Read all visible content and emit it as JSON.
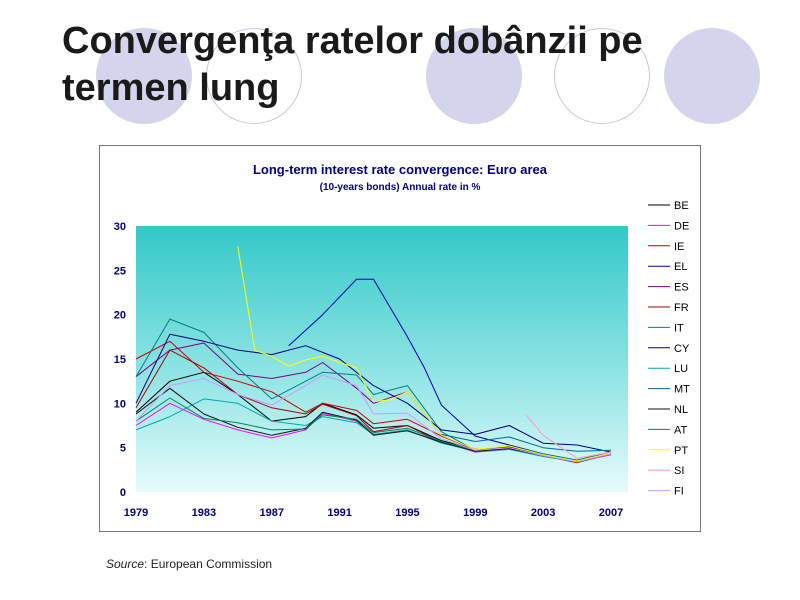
{
  "slide": {
    "title_line1": "Convergenţa ratelor dobânzii pe",
    "title_line2": "termen lung",
    "source_label": "Source",
    "source_text": ": European Commission"
  },
  "chart_data": {
    "type": "line",
    "title": "Long-term interest rate convergence: Euro area",
    "subtitle": "(10-years bonds) Annual rate in %",
    "xlabel": "",
    "ylabel": "",
    "x_ticks": [
      "1979",
      "1983",
      "1987",
      "1991",
      "1995",
      "1999",
      "2003",
      "2007"
    ],
    "ylim": [
      0,
      30
    ],
    "xlim": [
      1979,
      2008
    ],
    "y_ticks": [
      0,
      5,
      10,
      15,
      20,
      25,
      30
    ],
    "background": "gradient teal to pale cyan",
    "legend_position": "right",
    "series": [
      {
        "name": "BE",
        "color": "#000000",
        "points": [
          [
            1979,
            9
          ],
          [
            1981,
            12.5
          ],
          [
            1983,
            13.5
          ],
          [
            1985,
            11
          ],
          [
            1987,
            8
          ],
          [
            1989,
            8.5
          ],
          [
            1990,
            10
          ],
          [
            1992,
            8.7
          ],
          [
            1993,
            7.2
          ],
          [
            1995,
            7.5
          ],
          [
            1997,
            5.8
          ],
          [
            1999,
            4.8
          ],
          [
            2001,
            5.1
          ],
          [
            2003,
            4.2
          ],
          [
            2005,
            3.4
          ],
          [
            2007,
            4.3
          ]
        ]
      },
      {
        "name": "DE",
        "color": "#ff00ff",
        "points": [
          [
            1979,
            7.5
          ],
          [
            1981,
            10
          ],
          [
            1983,
            8.2
          ],
          [
            1985,
            7
          ],
          [
            1987,
            6.1
          ],
          [
            1989,
            7
          ],
          [
            1990,
            8.9
          ],
          [
            1992,
            8
          ],
          [
            1993,
            6.5
          ],
          [
            1995,
            6.9
          ],
          [
            1997,
            5.7
          ],
          [
            1999,
            4.5
          ],
          [
            2001,
            4.8
          ],
          [
            2003,
            4.1
          ],
          [
            2005,
            3.4
          ],
          [
            2007,
            4.2
          ]
        ]
      },
      {
        "name": "IE",
        "color": "#cc0000",
        "points": [
          [
            1979,
            15
          ],
          [
            1981,
            17
          ],
          [
            1983,
            13.5
          ],
          [
            1985,
            12.5
          ],
          [
            1987,
            11.3
          ],
          [
            1989,
            9
          ],
          [
            1990,
            10
          ],
          [
            1992,
            9.2
          ],
          [
            1993,
            7.7
          ],
          [
            1995,
            8.2
          ],
          [
            1997,
            6.3
          ],
          [
            1999,
            4.8
          ],
          [
            2001,
            5
          ],
          [
            2003,
            4.1
          ],
          [
            2005,
            3.3
          ],
          [
            2007,
            4.3
          ]
        ]
      },
      {
        "name": "EL",
        "color": "#0000aa",
        "points": [
          [
            1988,
            16.5
          ],
          [
            1990,
            20
          ],
          [
            1992,
            24
          ],
          [
            1993,
            24
          ],
          [
            1995,
            17.5
          ],
          [
            1996,
            14
          ],
          [
            1997,
            9.8
          ],
          [
            1999,
            6.3
          ],
          [
            2001,
            5.3
          ],
          [
            2003,
            4.3
          ],
          [
            2005,
            3.6
          ],
          [
            2007,
            4.5
          ]
        ]
      },
      {
        "name": "ES",
        "color": "#800080",
        "points": [
          [
            1979,
            13
          ],
          [
            1981,
            16
          ],
          [
            1983,
            16.8
          ],
          [
            1985,
            13.3
          ],
          [
            1987,
            12.8
          ],
          [
            1989,
            13.5
          ],
          [
            1990,
            14.6
          ],
          [
            1992,
            11.7
          ],
          [
            1993,
            10
          ],
          [
            1995,
            11.3
          ],
          [
            1997,
            6.4
          ],
          [
            1999,
            4.7
          ],
          [
            2001,
            5.1
          ],
          [
            2003,
            4.1
          ],
          [
            2005,
            3.4
          ],
          [
            2007,
            4.3
          ]
        ]
      },
      {
        "name": "FR",
        "color": "#aa0000",
        "points": [
          [
            1979,
            9.5
          ],
          [
            1981,
            16
          ],
          [
            1983,
            14
          ],
          [
            1985,
            11
          ],
          [
            1987,
            9.5
          ],
          [
            1989,
            8.8
          ],
          [
            1990,
            9.9
          ],
          [
            1992,
            8.6
          ],
          [
            1993,
            6.8
          ],
          [
            1995,
            7.5
          ],
          [
            1997,
            5.6
          ],
          [
            1999,
            4.6
          ],
          [
            2001,
            5
          ],
          [
            2003,
            4.1
          ],
          [
            2005,
            3.4
          ],
          [
            2007,
            4.3
          ]
        ]
      },
      {
        "name": "IT",
        "color": "#008080",
        "points": [
          [
            1979,
            13
          ],
          [
            1981,
            19.5
          ],
          [
            1983,
            18
          ],
          [
            1985,
            14
          ],
          [
            1987,
            10.5
          ],
          [
            1989,
            12.5
          ],
          [
            1990,
            13.5
          ],
          [
            1992,
            13.2
          ],
          [
            1993,
            11
          ],
          [
            1995,
            12
          ],
          [
            1997,
            6.8
          ],
          [
            1999,
            4.7
          ],
          [
            2001,
            5.2
          ],
          [
            2003,
            4.3
          ],
          [
            2005,
            3.6
          ],
          [
            2007,
            4.5
          ]
        ]
      },
      {
        "name": "CY",
        "color": "#000080",
        "points": [
          [
            1979,
            10
          ],
          [
            1981,
            17.8
          ],
          [
            1983,
            17
          ],
          [
            1985,
            16
          ],
          [
            1987,
            15.5
          ],
          [
            1989,
            16.5
          ],
          [
            1991,
            15
          ],
          [
            1993,
            12
          ],
          [
            1995,
            10
          ],
          [
            1997,
            7
          ],
          [
            1999,
            6.5
          ],
          [
            2001,
            7.5
          ],
          [
            2003,
            5.5
          ],
          [
            2005,
            5.3
          ],
          [
            2007,
            4.5
          ]
        ]
      },
      {
        "name": "LU",
        "color": "#00aaaa",
        "points": [
          [
            1979,
            7
          ],
          [
            1981,
            8.5
          ],
          [
            1983,
            10.5
          ],
          [
            1985,
            10
          ],
          [
            1987,
            8
          ],
          [
            1989,
            7.5
          ],
          [
            1990,
            8.5
          ],
          [
            1992,
            7.8
          ],
          [
            1993,
            6.5
          ],
          [
            1995,
            7
          ],
          [
            1997,
            5.5
          ],
          [
            1999,
            4.6
          ],
          [
            2001,
            4.8
          ],
          [
            2003,
            4
          ],
          [
            2005,
            3.4
          ],
          [
            2007,
            4.3
          ]
        ]
      },
      {
        "name": "MT",
        "color": "#006699",
        "points": [
          [
            1997,
            6.5
          ],
          [
            1999,
            5.7
          ],
          [
            2001,
            6.2
          ],
          [
            2003,
            5
          ],
          [
            2005,
            4.6
          ],
          [
            2007,
            4.7
          ]
        ]
      },
      {
        "name": "NL",
        "color": "#111111",
        "points": [
          [
            1979,
            8.8
          ],
          [
            1981,
            11.7
          ],
          [
            1983,
            8.8
          ],
          [
            1985,
            7.3
          ],
          [
            1987,
            6.4
          ],
          [
            1989,
            7.2
          ],
          [
            1990,
            9
          ],
          [
            1992,
            8.1
          ],
          [
            1993,
            6.4
          ],
          [
            1995,
            6.9
          ],
          [
            1997,
            5.6
          ],
          [
            1999,
            4.6
          ],
          [
            2001,
            4.9
          ],
          [
            2003,
            4.1
          ],
          [
            2005,
            3.4
          ],
          [
            2007,
            4.3
          ]
        ]
      },
      {
        "name": "AT",
        "color": "#008855",
        "points": [
          [
            1979,
            8
          ],
          [
            1981,
            10.6
          ],
          [
            1983,
            8.3
          ],
          [
            1985,
            7.8
          ],
          [
            1987,
            7
          ],
          [
            1989,
            7.1
          ],
          [
            1990,
            8.7
          ],
          [
            1992,
            8.2
          ],
          [
            1993,
            6.7
          ],
          [
            1995,
            7.2
          ],
          [
            1997,
            5.7
          ],
          [
            1999,
            4.7
          ],
          [
            2001,
            5
          ],
          [
            2003,
            4.1
          ],
          [
            2005,
            3.4
          ],
          [
            2007,
            4.3
          ]
        ]
      },
      {
        "name": "PT",
        "color": "#ffff00",
        "points": [
          [
            1985,
            27.7
          ],
          [
            1986,
            16
          ],
          [
            1987,
            15.3
          ],
          [
            1988,
            14.2
          ],
          [
            1989,
            14.9
          ],
          [
            1990,
            15.3
          ],
          [
            1991,
            14.6
          ],
          [
            1992,
            14
          ],
          [
            1993,
            10.2
          ],
          [
            1994,
            10.4
          ],
          [
            1995,
            11.3
          ],
          [
            1997,
            6.4
          ],
          [
            1999,
            4.8
          ],
          [
            2001,
            5.2
          ],
          [
            2003,
            4.2
          ],
          [
            2005,
            3.5
          ],
          [
            2007,
            4.4
          ]
        ]
      },
      {
        "name": "SI",
        "color": "#ff99cc",
        "points": [
          [
            2002,
            8.7
          ],
          [
            2003,
            6.4
          ],
          [
            2005,
            3.8
          ],
          [
            2007,
            4.5
          ]
        ]
      },
      {
        "name": "FI",
        "color": "#cc99ff",
        "points": [
          [
            1979,
            8
          ],
          [
            1981,
            12
          ],
          [
            1983,
            12.8
          ],
          [
            1985,
            11
          ],
          [
            1987,
            9.8
          ],
          [
            1989,
            12
          ],
          [
            1990,
            13.2
          ],
          [
            1992,
            12
          ],
          [
            1993,
            8.8
          ],
          [
            1995,
            8.9
          ],
          [
            1997,
            6
          ],
          [
            1999,
            4.7
          ],
          [
            2001,
            5
          ],
          [
            2003,
            4.1
          ],
          [
            2005,
            3.4
          ],
          [
            2007,
            4.3
          ]
        ]
      }
    ]
  }
}
